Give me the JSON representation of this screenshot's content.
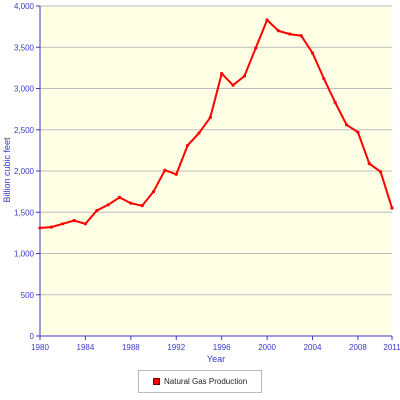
{
  "chart_data": {
    "type": "line",
    "xlabel": "Year",
    "ylabel": "Billion cubic feet",
    "ylim": [
      0,
      4000
    ],
    "xlim": [
      1980,
      2011
    ],
    "y_ticks": [
      "0",
      "500",
      "1,000",
      "1,500",
      "2,000",
      "2,500",
      "3,000",
      "3,500",
      "4,000"
    ],
    "y_tick_values": [
      0,
      500,
      1000,
      1500,
      2000,
      2500,
      3000,
      3500,
      4000
    ],
    "x_ticks": [
      "1980",
      "1984",
      "1988",
      "1992",
      "1996",
      "2000",
      "2004",
      "2008",
      "2011"
    ],
    "x_tick_values": [
      1980,
      1984,
      1988,
      1992,
      1996,
      2000,
      2004,
      2008,
      2011
    ],
    "grid": "horizontal",
    "legend_position": "bottom-center",
    "colors": {
      "line": "#ff0000",
      "plot_bg": "#ffffe6",
      "grid": "#bdbdbd",
      "axis_text": "#3a3acb"
    },
    "series": [
      {
        "name": "Natural Gas Production",
        "x": [
          1980,
          1981,
          1982,
          1983,
          1984,
          1985,
          1986,
          1987,
          1988,
          1989,
          1990,
          1991,
          1992,
          1993,
          1994,
          1995,
          1996,
          1997,
          1998,
          1999,
          2000,
          2001,
          2002,
          2003,
          2004,
          2005,
          2006,
          2007,
          2008,
          2009,
          2010,
          2011
        ],
        "values": [
          1310,
          1320,
          1360,
          1400,
          1360,
          1520,
          1590,
          1680,
          1610,
          1580,
          1750,
          2010,
          1960,
          2310,
          2460,
          2650,
          3180,
          3040,
          3150,
          3490,
          3830,
          3700,
          3660,
          3640,
          3430,
          3120,
          2830,
          2560,
          2470,
          2090,
          1990,
          1550
        ]
      }
    ]
  }
}
